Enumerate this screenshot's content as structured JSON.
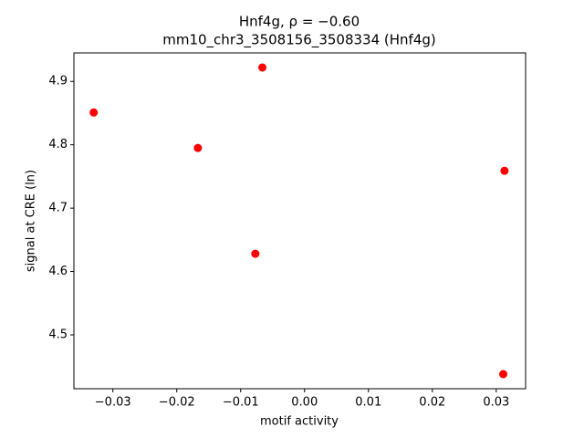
{
  "chart_data": {
    "type": "scatter",
    "title": "Hnf4g, ρ = −0.60",
    "subtitle": "mm10_chr3_3508156_3508334 (Hnf4g)",
    "x_label": "motif activity",
    "y_label": "signal at CRE (ln)",
    "color": "#ff0000",
    "x": [
      -0.033,
      -0.0167,
      -0.0066,
      -0.0077,
      0.0313,
      0.0311
    ],
    "values": [
      4.851,
      4.795,
      4.922,
      4.628,
      4.759,
      4.438
    ],
    "xlim": [
      -0.0361,
      0.0346
    ],
    "ylim": [
      4.415,
      4.945
    ],
    "xticks": [
      {
        "value": -0.03,
        "label": "−0.03"
      },
      {
        "value": -0.02,
        "label": "−0.02"
      },
      {
        "value": -0.01,
        "label": "−0.01"
      },
      {
        "value": 0,
        "label": "0.00"
      },
      0.01,
      0.02,
      0.03
    ],
    "yticks": [
      4.5,
      4.6,
      4.7,
      4.8,
      4.9
    ]
  }
}
